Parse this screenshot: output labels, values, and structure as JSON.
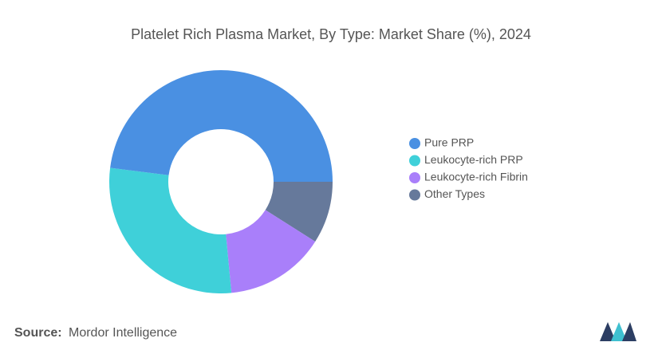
{
  "chart_data": {
    "type": "pie",
    "title": "Platelet Rich Plasma Market, By Type: Market Share (%), 2024",
    "categories": [
      "Pure PRP",
      "Leukocyte-rich PRP",
      "Leukocyte-rich Fibrin",
      "Other Types"
    ],
    "values": [
      48,
      28.5,
      14.5,
      9
    ],
    "colors": [
      "#4a90e2",
      "#3fd0d9",
      "#a97ffa",
      "#66799b"
    ],
    "legend": "right"
  },
  "footer": {
    "source_label": "Source:",
    "source": "Mordor Intelligence"
  }
}
